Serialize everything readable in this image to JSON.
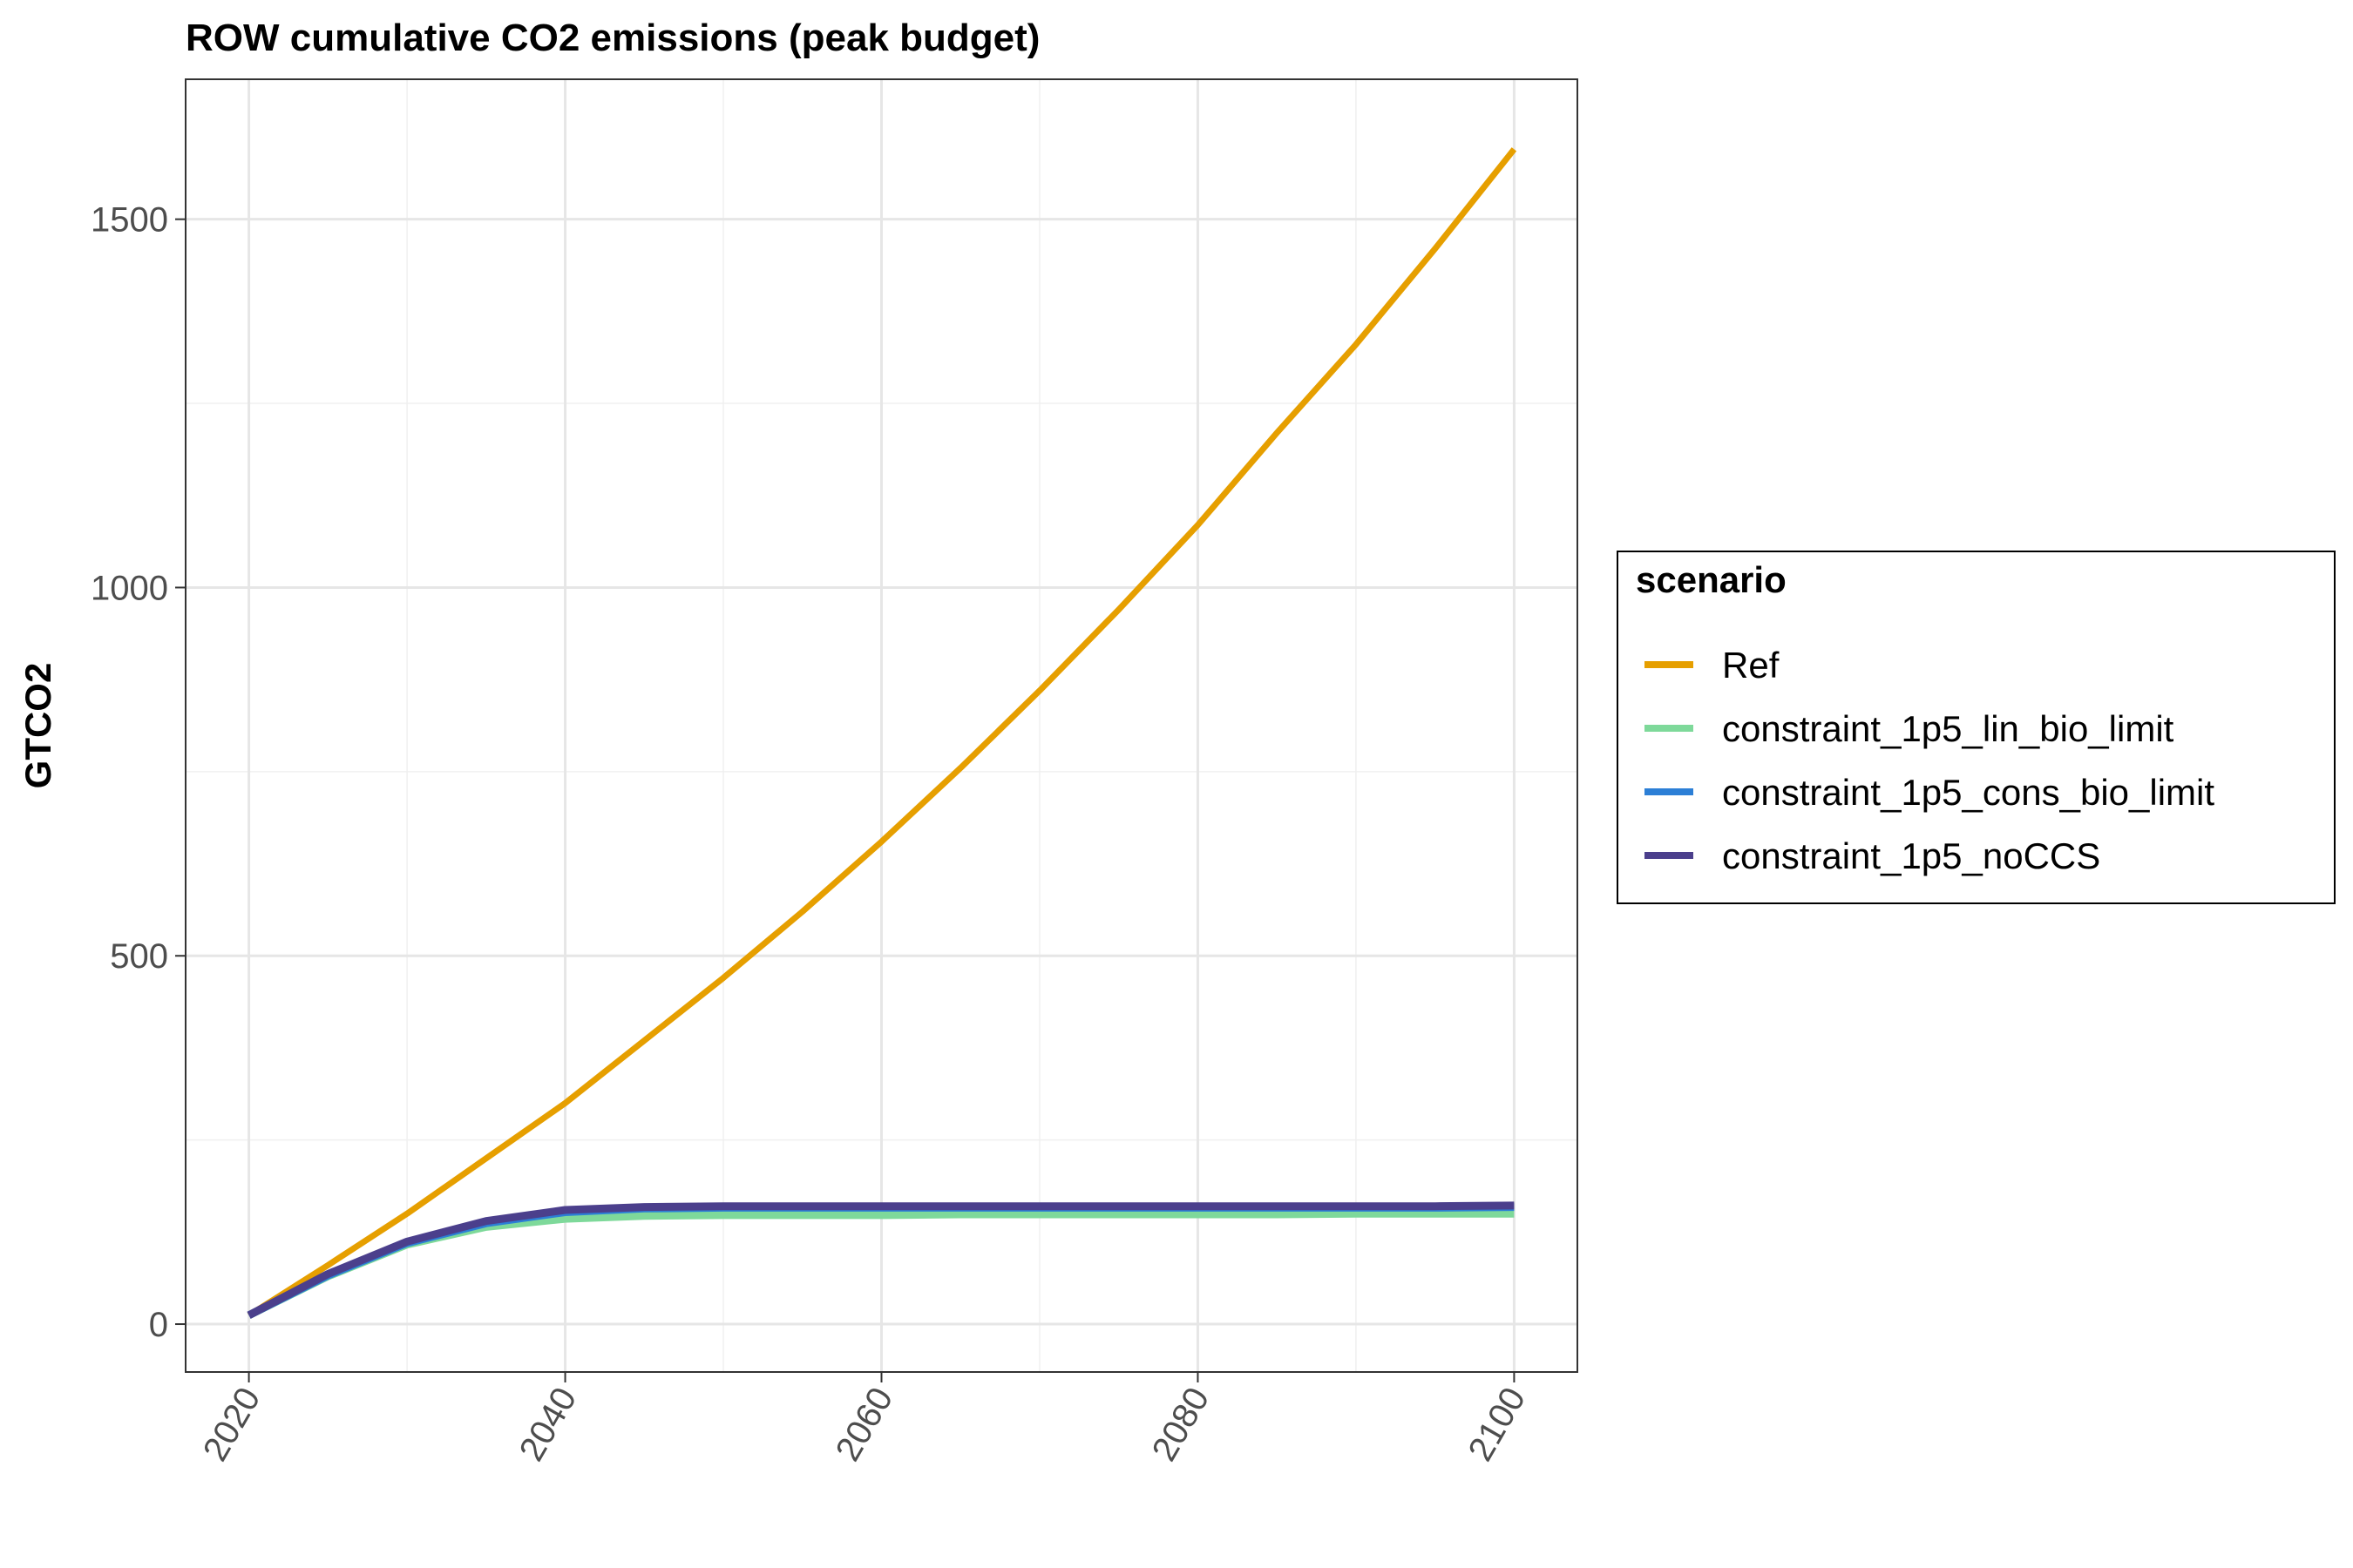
{
  "chart_data": {
    "type": "line",
    "title": "ROW cumulative CO2 emissions (peak budget)",
    "xlabel": "",
    "ylabel": "GTCO2",
    "xlim": [
      2016,
      2104
    ],
    "ylim": [
      -65,
      1690
    ],
    "x_ticks": [
      2020,
      2040,
      2060,
      2080,
      2100
    ],
    "x_tick_labels": [
      "2020",
      "2040",
      "2060",
      "2080",
      "2100"
    ],
    "y_ticks": [
      0,
      500,
      1000,
      1500
    ],
    "y_tick_labels": [
      "0",
      "500",
      "1000",
      "1500"
    ],
    "y_minor_ticks": [
      250,
      750,
      1250
    ],
    "x_minor_ticks": [
      2030,
      2050,
      2070,
      2090
    ],
    "grid": true,
    "legend": {
      "title": "scenario",
      "position": "right"
    },
    "x": [
      2020,
      2025,
      2030,
      2035,
      2040,
      2045,
      2050,
      2055,
      2060,
      2065,
      2070,
      2075,
      2080,
      2085,
      2090,
      2095,
      2100
    ],
    "series": [
      {
        "name": "Ref",
        "color": "#E69F00",
        "values": [
          12,
          80,
          150,
          225,
          300,
          385,
          470,
          560,
          655,
          755,
          860,
          970,
          1085,
          1210,
          1330,
          1460,
          1595
        ]
      },
      {
        "name": "constraint_1p5_lin_bio_limit",
        "color": "#7ED99A",
        "values": [
          12,
          65,
          108,
          132,
          143,
          147,
          148,
          148,
          148,
          149,
          149,
          149,
          149,
          149,
          150,
          150,
          150
        ]
      },
      {
        "name": "constraint_1p5_cons_bio_limit",
        "color": "#2C7FD6",
        "values": [
          12,
          66,
          110,
          137,
          152,
          157,
          158,
          158,
          158,
          158,
          158,
          158,
          158,
          158,
          158,
          158,
          159
        ]
      },
      {
        "name": "constraint_1p5_noCCS",
        "color": "#4B3F8C",
        "values": [
          12,
          68,
          112,
          140,
          155,
          159,
          160,
          160,
          160,
          160,
          160,
          160,
          160,
          160,
          160,
          160,
          161
        ]
      }
    ]
  }
}
